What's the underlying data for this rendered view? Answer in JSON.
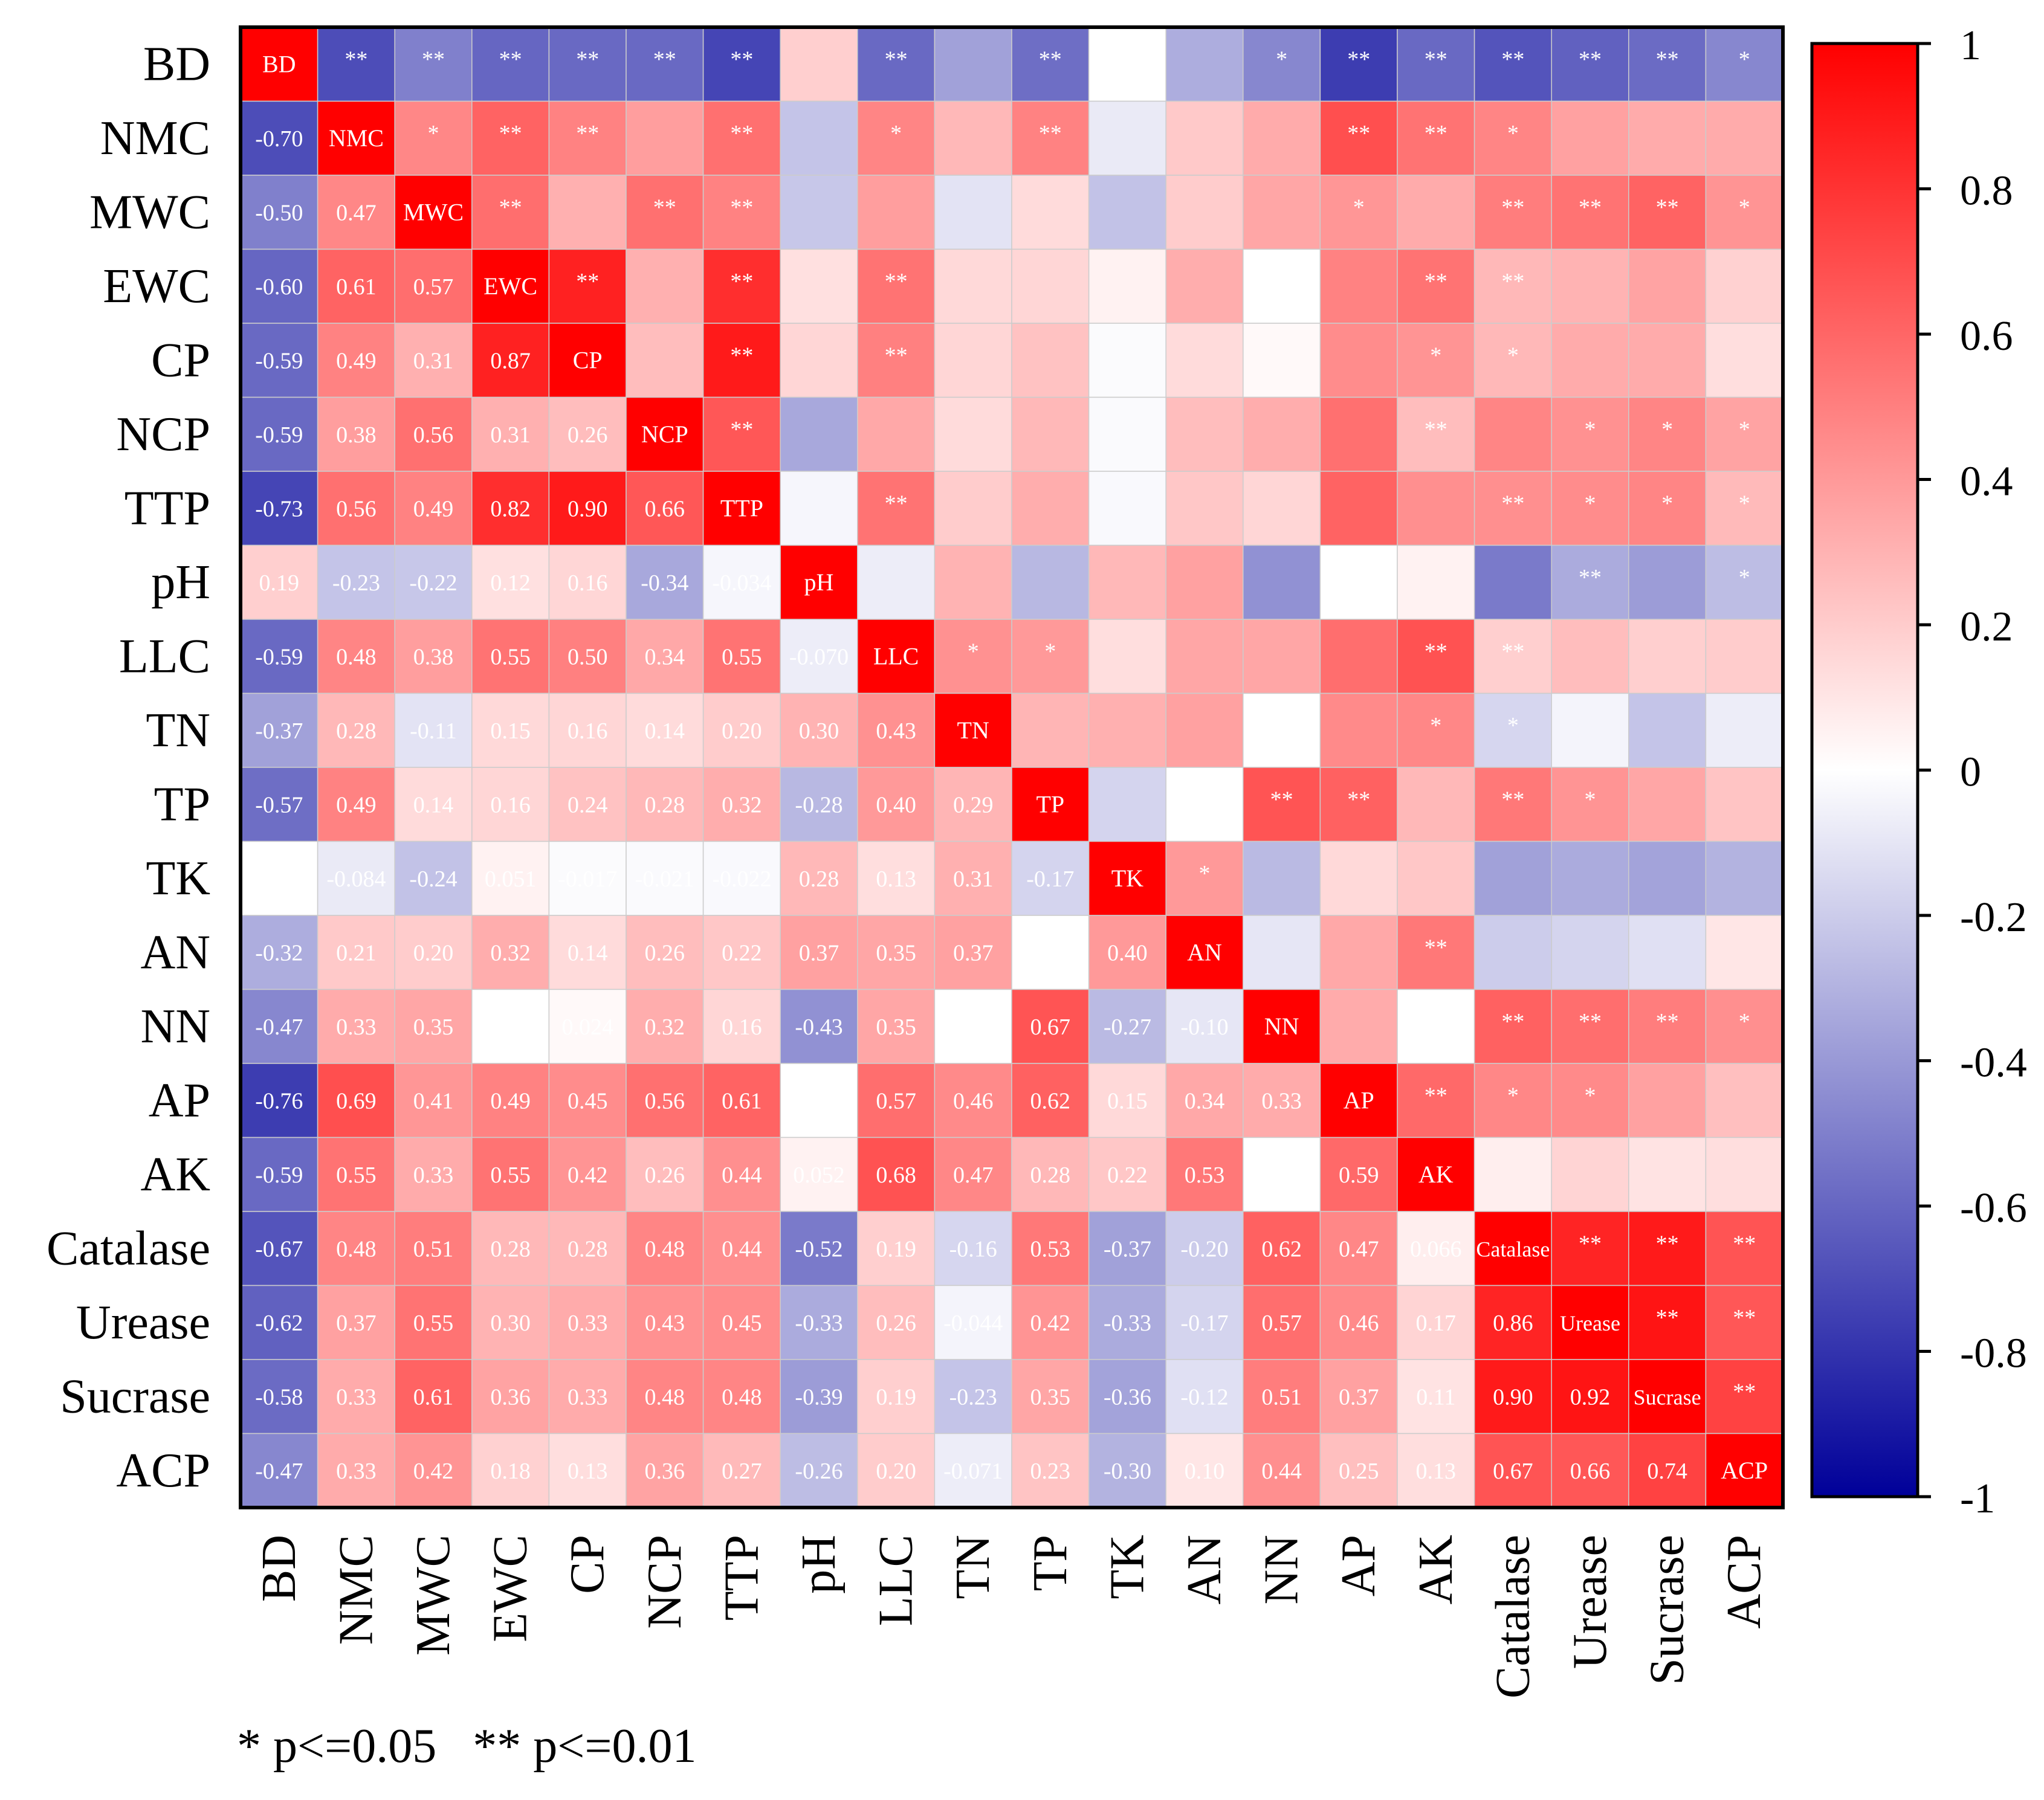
{
  "chart_data": {
    "type": "heatmap",
    "variables": [
      "BD",
      "NMC",
      "MWC",
      "EWC",
      "CP",
      "NCP",
      "TTP",
      "pH",
      "LLC",
      "TN",
      "TP",
      "TK",
      "AN",
      "NN",
      "AP",
      "AK",
      "Catalase",
      "Urease",
      "Sucrase",
      "ACP"
    ],
    "lower_triangle": {
      "NMC": [
        "-0.70"
      ],
      "MWC": [
        "-0.50",
        "0.47"
      ],
      "EWC": [
        "-0.60",
        "0.61",
        "0.57"
      ],
      "CP": [
        "-0.59",
        "0.49",
        "0.31",
        "0.87"
      ],
      "NCP": [
        "-0.59",
        "0.38",
        "0.56",
        "0.31",
        "0.26"
      ],
      "TTP": [
        "-0.73",
        "0.56",
        "0.49",
        "0.82",
        "0.90",
        "0.66"
      ],
      "pH": [
        "0.19",
        "-0.23",
        "-0.22",
        "0.12",
        "0.16",
        "-0.34",
        "-0.034"
      ],
      "LLC": [
        "-0.59",
        "0.48",
        "0.38",
        "0.55",
        "0.50",
        "0.34",
        "0.55",
        "-0.070"
      ],
      "TN": [
        "-0.37",
        "0.28",
        "-0.11",
        "0.15",
        "0.16",
        "0.14",
        "0.20",
        "0.30",
        "0.43"
      ],
      "TP": [
        "-0.57",
        "0.49",
        "0.14",
        "0.16",
        "0.24",
        "0.28",
        "0.32",
        "-0.28",
        "0.40",
        "0.29"
      ],
      "TK": [
        "0.000",
        "-0.084",
        "-0.24",
        "0.051",
        "-0.017",
        "-0.021",
        "-0.022",
        "0.28",
        "0.13",
        "0.31",
        "-0.17"
      ],
      "AN": [
        "-0.32",
        "0.21",
        "0.20",
        "0.32",
        "0.14",
        "0.26",
        "0.22",
        "0.37",
        "0.35",
        "0.37",
        "0.00",
        "0.40"
      ],
      "NN": [
        "-0.47",
        "0.33",
        "0.35",
        "0.0011",
        "0.024",
        "0.32",
        "0.16",
        "-0.43",
        "0.35",
        "0.00",
        "0.67",
        "-0.27",
        "-0.10"
      ],
      "AP": [
        "-0.76",
        "0.69",
        "0.41",
        "0.49",
        "0.45",
        "0.56",
        "0.61",
        "0.00",
        "0.57",
        "0.46",
        "0.62",
        "0.15",
        "0.34",
        "0.33"
      ],
      "AK": [
        "-0.59",
        "0.55",
        "0.33",
        "0.55",
        "0.42",
        "0.26",
        "0.44",
        "0.052",
        "0.68",
        "0.47",
        "0.28",
        "0.22",
        "0.53",
        "0.00",
        "0.59"
      ],
      "Catalase": [
        "-0.67",
        "0.48",
        "0.51",
        "0.28",
        "0.28",
        "0.48",
        "0.44",
        "-0.52",
        "0.19",
        "-0.16",
        "0.53",
        "-0.37",
        "-0.20",
        "0.62",
        "0.47",
        "0.066"
      ],
      "Urease": [
        "-0.62",
        "0.37",
        "0.55",
        "0.30",
        "0.33",
        "0.43",
        "0.45",
        "-0.33",
        "0.26",
        "-0.044",
        "0.42",
        "-0.33",
        "-0.17",
        "0.57",
        "0.46",
        "0.17",
        "0.86"
      ],
      "Sucrase": [
        "-0.58",
        "0.33",
        "0.61",
        "0.36",
        "0.33",
        "0.48",
        "0.48",
        "-0.39",
        "0.19",
        "-0.23",
        "0.35",
        "-0.36",
        "-0.12",
        "0.51",
        "0.37",
        "0.11",
        "0.90",
        "0.92"
      ],
      "ACP": [
        "-0.47",
        "0.33",
        "0.42",
        "0.18",
        "0.13",
        "0.36",
        "0.27",
        "-0.26",
        "0.20",
        "-0.071",
        "0.23",
        "-0.30",
        "0.10",
        "0.44",
        "0.25",
        "0.13",
        "0.67",
        "0.66",
        "0.74"
      ]
    },
    "hidden_lower_values": [
      [
        11,
        0
      ],
      [
        12,
        10
      ],
      [
        13,
        9
      ],
      [
        14,
        7
      ],
      [
        15,
        13
      ]
    ],
    "significance": [
      "",
      "**",
      "**|*",
      "**|**|**",
      "**|**||**",
      "**|||**|",
      "**|**|**|**|**|**",
      "|||||||",
      "**|*|||**||**|",
      "|||||||||*",
      "**|**||||||||*",
      "||||||||||||",
      "||||||||||||*",
      "*|||||||||||",
      "**|**|*|**|*|**|**||**||**||",
      "**|**||**|*||*|**|*|*|||**|**",
      "**|*|**||||||||*||**|*|*",
      "**||**|||*|*|||**|||*|**|**",
      "**||**|||*|*|||**|||*||**|**",
      "*||*||||||||||*||||||"
    ],
    "upper_significance": {
      "BD": [
        "**",
        "**",
        "**",
        "**",
        "**",
        "**",
        "",
        "**",
        "",
        "**",
        "",
        "",
        "*",
        "**",
        "**",
        "**",
        "**",
        "**",
        "*"
      ],
      "NMC": [
        "*",
        "**",
        "**",
        "",
        "**",
        "",
        "*",
        "",
        "**",
        "",
        "",
        "",
        "**",
        "**",
        "*",
        "",
        "",
        ""
      ],
      "MWC": [
        "**",
        "",
        "**",
        "**",
        "",
        "",
        "",
        "",
        "",
        "",
        "",
        "*",
        "",
        "**",
        "**",
        "**",
        "*"
      ],
      "EWC": [
        "**",
        "",
        "**",
        "",
        "**",
        "",
        "",
        "",
        "",
        "",
        "",
        "**",
        "**",
        "",
        "",
        "",
        ""
      ],
      "CP": [
        "",
        "**",
        "",
        "**",
        "",
        "",
        "",
        "",
        "",
        "",
        "*",
        "*",
        "",
        "",
        "",
        ""
      ],
      "NCP": [
        "**",
        "",
        "",
        "",
        "",
        "",
        "",
        "",
        "",
        "**",
        "",
        "*",
        "*",
        "*",
        ""
      ],
      "TTP": [
        "",
        "**",
        "",
        "",
        "",
        "",
        "",
        "",
        "",
        "**",
        "*",
        "*",
        "*",
        "*",
        ""
      ],
      "pH": [
        "",
        "",
        "",
        "",
        "",
        "",
        "*",
        "",
        "",
        "**",
        "",
        "*",
        ""
      ],
      "LLC": [
        "*",
        "*",
        "",
        "",
        "",
        "",
        "**",
        "**",
        "",
        "",
        "",
        ""
      ],
      "TN": [
        "",
        "",
        "",
        "",
        "",
        "*",
        "*",
        "",
        "",
        "",
        ""
      ],
      "TP": [
        "",
        "",
        "**",
        "**",
        "",
        "**",
        "*",
        "",
        ""
      ],
      "TK": [
        "*",
        "",
        "",
        "",
        "",
        "",
        "",
        ""
      ],
      "AN": [
        "",
        "",
        "**",
        "",
        "",
        "",
        ""
      ],
      "NN": [
        "",
        "",
        "**",
        "**",
        "**",
        "*"
      ],
      "AP": [
        "**",
        "*",
        "*",
        "",
        ""
      ],
      "AK": [
        "",
        "",
        "",
        ""
      ],
      "Catalase": [
        "**",
        "**",
        "**"
      ],
      "Urease": [
        "**",
        "**"
      ],
      "Sucrase": [
        "**"
      ]
    },
    "colorbar": {
      "min": -1,
      "max": 1,
      "ticks": [
        "1",
        "0.8",
        "0.6",
        "0.4",
        "0.2",
        "0",
        "-0.2",
        "-0.4",
        "-0.6",
        "-0.8",
        "-1"
      ]
    },
    "colors": {
      "negative": "#000099",
      "zero": "#ffffff",
      "positive": "#ff0000",
      "grid": "#cccccc",
      "text": "#ffffff"
    },
    "upper_colors": {
      "BD": [
        -0.7,
        -0.5,
        -0.6,
        -0.59,
        -0.59,
        -0.73,
        0.19,
        -0.59,
        -0.37,
        -0.57,
        0.0,
        -0.32,
        -0.47,
        -0.76,
        -0.59,
        -0.67,
        -0.62,
        -0.58,
        -0.47
      ],
      "NMC": [
        0.47,
        0.61,
        0.49,
        0.38,
        0.56,
        -0.23,
        0.48,
        0.28,
        0.49,
        -0.084,
        0.21,
        0.33,
        0.69,
        0.55,
        0.48,
        0.37,
        0.33,
        0.33
      ],
      "MWC": [
        0.57,
        0.31,
        0.56,
        0.49,
        -0.22,
        0.38,
        -0.11,
        0.14,
        -0.24,
        0.2,
        0.35,
        0.41,
        0.33,
        0.51,
        0.55,
        0.61,
        0.42
      ],
      "EWC": [
        0.87,
        0.31,
        0.82,
        0.12,
        0.55,
        0.15,
        0.16,
        0.051,
        0.32,
        0.0011,
        0.49,
        0.55,
        0.28,
        0.3,
        0.36,
        0.18
      ],
      "CP": [
        0.26,
        0.9,
        0.16,
        0.5,
        0.16,
        0.24,
        -0.017,
        0.14,
        0.024,
        0.45,
        0.42,
        0.28,
        0.33,
        0.33,
        0.13
      ],
      "NCP": [
        0.66,
        -0.34,
        0.34,
        0.14,
        0.28,
        -0.021,
        0.26,
        0.32,
        0.56,
        0.26,
        0.48,
        0.43,
        0.48,
        0.36
      ],
      "TTP": [
        -0.034,
        0.55,
        0.2,
        0.32,
        -0.022,
        0.22,
        0.16,
        0.61,
        0.44,
        0.44,
        0.45,
        0.48,
        0.27
      ],
      "pH": [
        -0.07,
        0.3,
        -0.28,
        0.28,
        0.37,
        -0.43,
        0.0,
        0.052,
        -0.52,
        -0.33,
        -0.39,
        -0.26
      ],
      "LLC": [
        0.43,
        0.4,
        0.13,
        0.35,
        0.35,
        0.57,
        0.68,
        0.19,
        0.26,
        0.19,
        0.2
      ],
      "TN": [
        0.29,
        0.31,
        0.37,
        0.0,
        0.46,
        0.47,
        -0.16,
        -0.044,
        -0.23,
        -0.071
      ],
      "TP": [
        -0.17,
        0.0,
        0.67,
        0.62,
        0.28,
        0.53,
        0.42,
        0.35,
        0.23
      ],
      "TK": [
        0.4,
        -0.27,
        0.15,
        0.22,
        -0.37,
        -0.33,
        -0.36,
        -0.3
      ],
      "AN": [
        -0.1,
        0.34,
        0.53,
        -0.2,
        -0.17,
        -0.12,
        0.1
      ],
      "NN": [
        0.33,
        0.0,
        0.62,
        0.57,
        0.51,
        0.44
      ],
      "AP": [
        0.59,
        0.47,
        0.46,
        0.37,
        0.25
      ],
      "AK": [
        0.066,
        0.17,
        0.11,
        0.13
      ],
      "Catalase": [
        0.86,
        0.9,
        0.67
      ],
      "Urease": [
        0.92,
        0.66
      ],
      "Sucrase": [
        0.74
      ]
    },
    "legend_note": "* p<=0.05   ** p<=0.01"
  }
}
